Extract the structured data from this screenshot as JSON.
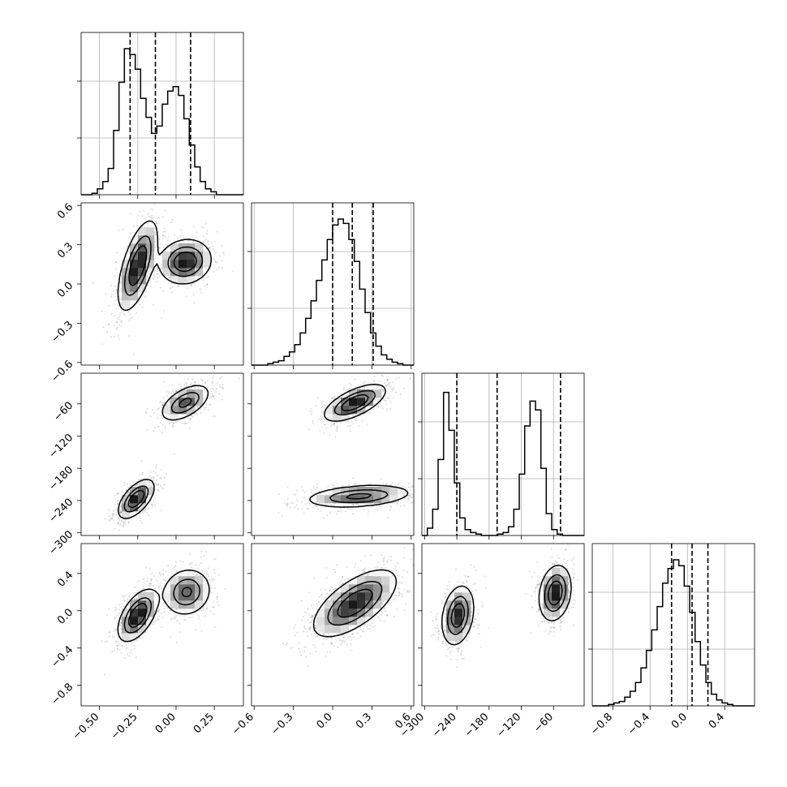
{
  "chart_data": {
    "type": "corner",
    "description_of_layout": "lower-triangular matrix of 1D histograms on the diagonal and 2D density/contour panels below",
    "parameters": [
      {
        "index": 0,
        "range": [
          -0.62,
          0.44
        ],
        "ticks": [
          -0.5,
          -0.25,
          0.0,
          0.25
        ],
        "tick_labels": [
          "−0.50",
          "−0.25",
          "0.00",
          "0.25"
        ],
        "quantiles": [
          -0.3,
          -0.135,
          0.095
        ],
        "modes": [
          {
            "center": -0.25,
            "sd": 0.055,
            "weight": 0.52
          },
          {
            "center": 0.07,
            "sd": 0.075,
            "weight": 0.48
          }
        ],
        "histogram": {
          "bins": 30,
          "ymax": 1.0,
          "counts": [
            0.0,
            0.0,
            0.01,
            0.04,
            0.09,
            0.18,
            0.44,
            0.77,
            1.0,
            0.96,
            0.86,
            0.66,
            0.53,
            0.42,
            0.47,
            0.62,
            0.71,
            0.74,
            0.68,
            0.52,
            0.34,
            0.19,
            0.09,
            0.04,
            0.02,
            0.0,
            0.0,
            0.0,
            0.0,
            0.0
          ]
        }
      },
      {
        "index": 1,
        "range": [
          -0.62,
          0.62
        ],
        "ticks": [
          -0.6,
          -0.3,
          0.0,
          0.3,
          0.6
        ],
        "tick_labels": [
          "−0.6",
          "−0.3",
          "0.0",
          "0.3",
          "0.6"
        ],
        "quantiles": [
          0.0,
          0.15,
          0.31
        ],
        "modes": [
          {
            "center": 0.15,
            "sd": 0.16,
            "weight": 1.0
          }
        ],
        "histogram": {
          "bins": 30,
          "ymax": 1.0,
          "counts": [
            0.0,
            0.0,
            0.0,
            0.01,
            0.02,
            0.03,
            0.06,
            0.09,
            0.14,
            0.22,
            0.32,
            0.44,
            0.58,
            0.72,
            0.86,
            0.96,
            1.0,
            0.97,
            0.86,
            0.71,
            0.52,
            0.36,
            0.22,
            0.13,
            0.07,
            0.04,
            0.02,
            0.01,
            0.0,
            0.0
          ]
        }
      },
      {
        "index": 2,
        "range": [
          -305,
          -3
        ],
        "ticks": [
          -300,
          -240,
          -180,
          -120,
          -60
        ],
        "tick_labels": [
          "−300",
          "−240",
          "−180",
          "−120",
          "−60"
        ],
        "quantiles": [
          -240,
          -165,
          -47
        ],
        "modes": [
          {
            "center": -236,
            "sd": 16,
            "weight": 0.5
          },
          {
            "center": -55,
            "sd": 15,
            "weight": 0.5
          }
        ],
        "histogram": {
          "bins": 30,
          "ymax": 1.0,
          "counts": [
            0.0,
            0.05,
            0.18,
            0.52,
            0.98,
            0.72,
            0.36,
            0.12,
            0.04,
            0.02,
            0.01,
            0.0,
            0.0,
            0.0,
            0.01,
            0.02,
            0.06,
            0.18,
            0.42,
            0.75,
            0.92,
            0.86,
            0.46,
            0.15,
            0.04,
            0.01,
            0.0,
            0.0,
            0.0,
            0.0
          ]
        }
      },
      {
        "index": 3,
        "range": [
          -1.02,
          0.72
        ],
        "ticks": [
          -0.8,
          -0.4,
          0.0,
          0.4
        ],
        "tick_labels": [
          "−0.8",
          "−0.4",
          "0.0",
          "0.4"
        ],
        "quantiles": [
          -0.17,
          0.05,
          0.22
        ],
        "modes": [
          {
            "center": 0.05,
            "sd": 0.16,
            "weight": 1.0
          }
        ],
        "histogram": {
          "bins": 30,
          "ymax": 1.0,
          "counts": [
            0.0,
            0.0,
            0.0,
            0.01,
            0.02,
            0.03,
            0.06,
            0.1,
            0.16,
            0.26,
            0.38,
            0.52,
            0.68,
            0.84,
            0.94,
            1.0,
            0.96,
            0.82,
            0.64,
            0.44,
            0.28,
            0.16,
            0.08,
            0.04,
            0.02,
            0.01,
            0.0,
            0.0,
            0.0,
            0.0
          ]
        }
      }
    ],
    "pair_blobs": {
      "1,0": [
        {
          "mx": -0.25,
          "my": 0.14,
          "sx": 0.06,
          "sy": 0.16,
          "rho": 0.62,
          "w": 0.55
        },
        {
          "mx": 0.06,
          "my": 0.17,
          "sx": 0.08,
          "sy": 0.08,
          "rho": 0.1,
          "w": 0.45
        }
      ],
      "2,0": [
        {
          "mx": 0.06,
          "my": -58,
          "sx": 0.075,
          "sy": 16,
          "rho": 0.55,
          "w": 0.5
        },
        {
          "mx": -0.26,
          "my": -237,
          "sx": 0.055,
          "sy": 17,
          "rho": 0.6,
          "w": 0.5
        }
      ],
      "2,1": [
        {
          "mx": 0.17,
          "my": -58,
          "sx": 0.11,
          "sy": 16,
          "rho": 0.65,
          "w": 0.5
        },
        {
          "mx": 0.2,
          "my": -232,
          "sx": 0.19,
          "sy": 10,
          "rho": 0.3,
          "w": 0.5
        }
      ],
      "3,0": [
        {
          "mx": -0.25,
          "my": -0.05,
          "sx": 0.06,
          "sy": 0.13,
          "rho": 0.55,
          "w": 0.52
        },
        {
          "mx": 0.07,
          "my": 0.2,
          "sx": 0.075,
          "sy": 0.12,
          "rho": 0.1,
          "w": 0.48
        }
      ],
      "3,1": [
        {
          "mx": 0.17,
          "my": 0.08,
          "sx": 0.15,
          "sy": 0.17,
          "rho": 0.65,
          "w": 1.0
        }
      ],
      "3,2": [
        {
          "mx": -238,
          "my": -0.05,
          "sx": 14,
          "sy": 0.15,
          "rho": 0.25,
          "w": 0.5
        },
        {
          "mx": -57,
          "my": 0.19,
          "sx": 14,
          "sy": 0.14,
          "rho": 0.2,
          "w": 0.5
        }
      ]
    },
    "contour_levels": [
      0.11,
      0.39,
      0.68
    ],
    "grid": true,
    "quantile_style": "dashed"
  }
}
